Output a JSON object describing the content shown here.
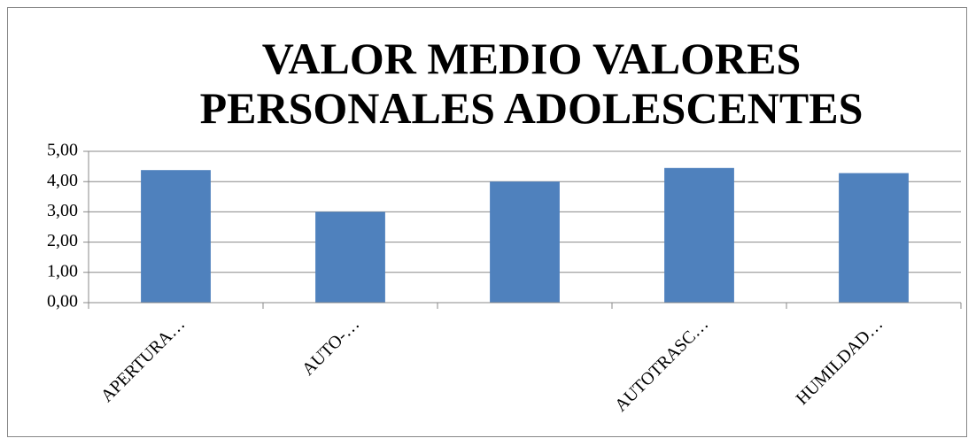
{
  "chart_data": {
    "type": "bar",
    "title": "VALOR MEDIO VALORES PERSONALES ADOLESCENTES",
    "categories": [
      "APERTURA…",
      "AUTO-…",
      null,
      "AUTOTRASC…",
      "HUMILDAD…"
    ],
    "values": [
      4.38,
      3.0,
      4.0,
      4.45,
      4.28
    ],
    "color": "#4f81bd",
    "ylim": [
      0,
      5
    ],
    "yticks": [
      {
        "value": 0,
        "label": "0,00"
      },
      {
        "value": 1,
        "label": "1,00"
      },
      {
        "value": 2,
        "label": "2,00"
      },
      {
        "value": 3,
        "label": "3,00"
      },
      {
        "value": 4,
        "label": "4,00"
      },
      {
        "value": 5,
        "label": "5,00"
      }
    ],
    "grid": true
  }
}
